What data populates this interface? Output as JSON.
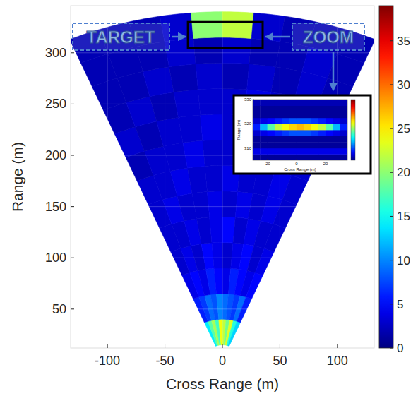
{
  "chart_data": [
    {
      "type": "heatmap",
      "xlabel": "Cross Range (m)",
      "ylabel": "Range (m)",
      "xlim": [
        -132,
        132
      ],
      "ylim": [
        12,
        346
      ],
      "xticks": [
        -100,
        -50,
        0,
        50,
        100
      ],
      "yticks": [
        50,
        100,
        150,
        200,
        250,
        300
      ],
      "grid": true,
      "angles": [
        -23,
        -18.4,
        -13.8,
        -9.2,
        -4.6,
        0,
        4.6,
        9.2,
        13.8,
        18.4,
        23
      ],
      "ranges": [
        15,
        40,
        65,
        90,
        115,
        140,
        165,
        190,
        215,
        240,
        265,
        290,
        315,
        340
      ],
      "cells": [
        [
          14,
          18,
          21,
          17,
          24,
          22,
          19,
          23,
          16,
          13
        ],
        [
          6,
          7,
          9,
          8,
          10,
          9,
          8,
          7,
          9,
          6
        ],
        [
          4,
          5,
          4,
          6,
          5,
          4,
          6,
          5,
          4,
          5
        ],
        [
          3,
          4,
          3,
          5,
          4,
          3,
          4,
          5,
          3,
          4
        ],
        [
          3,
          3,
          4,
          3,
          4,
          5,
          3,
          4,
          3,
          3
        ],
        [
          3,
          4,
          3,
          3,
          4,
          3,
          4,
          3,
          4,
          3
        ],
        [
          3,
          3,
          4,
          3,
          3,
          4,
          3,
          3,
          4,
          3
        ],
        [
          2,
          3,
          3,
          4,
          3,
          3,
          3,
          4,
          3,
          3
        ],
        [
          3,
          2,
          3,
          3,
          4,
          3,
          3,
          3,
          2,
          3
        ],
        [
          2,
          3,
          2,
          3,
          3,
          3,
          4,
          3,
          3,
          2
        ],
        [
          2,
          2,
          3,
          2,
          3,
          2,
          3,
          2,
          3,
          2
        ],
        [
          2,
          2,
          2,
          3,
          2,
          3,
          2,
          2,
          3,
          2
        ],
        [
          2,
          2,
          2,
          3,
          20,
          22,
          3,
          2,
          2,
          2
        ]
      ],
      "clim": [
        0,
        39
      ],
      "cticks": [
        0,
        5,
        10,
        15,
        20,
        25,
        30,
        35
      ],
      "annotations": [
        {
          "text": "TARGET"
        },
        {
          "text": "ZOOM"
        }
      ]
    },
    {
      "type": "heatmap",
      "xlabel": "Cross Range (m)",
      "ylabel": "Range (m)",
      "xlim": [
        -30,
        35
      ],
      "ylim": [
        305,
        330
      ],
      "xticks": [
        -20,
        0,
        20
      ],
      "yticks": [
        310,
        320,
        330
      ],
      "x": [
        -30,
        -25,
        -20,
        -15,
        -10,
        -5,
        0,
        5,
        10,
        15,
        20,
        25,
        30,
        35
      ],
      "y": [
        305,
        307.5,
        310,
        312.5,
        315,
        317.5,
        320,
        322.5,
        325,
        327.5,
        330
      ],
      "cells": [
        [
          1,
          1,
          1,
          1,
          1,
          1,
          1,
          1,
          1,
          1,
          1,
          1,
          1
        ],
        [
          4,
          4,
          4,
          4,
          4,
          4,
          4,
          4,
          4,
          4,
          4,
          4,
          4
        ],
        [
          1,
          1,
          1,
          1,
          1,
          1,
          1,
          1,
          1,
          1,
          1,
          1,
          1
        ],
        [
          1,
          1,
          1,
          1,
          1,
          1,
          1,
          1,
          1,
          1,
          1,
          1,
          1
        ],
        [
          3,
          4,
          5,
          6,
          7,
          8,
          8,
          8,
          7,
          6,
          5,
          4,
          3
        ],
        [
          6,
          12,
          18,
          22,
          24,
          26,
          27,
          26,
          24,
          22,
          18,
          12,
          6
        ],
        [
          3,
          4,
          5,
          6,
          7,
          8,
          8,
          8,
          7,
          6,
          5,
          4,
          3
        ],
        [
          1,
          1,
          1,
          1,
          1,
          1,
          1,
          1,
          1,
          1,
          1,
          1,
          1
        ],
        [
          1,
          1,
          1,
          1,
          1,
          1,
          1,
          1,
          1,
          1,
          1,
          1,
          1
        ],
        [
          2,
          2,
          2,
          2,
          2,
          2,
          2,
          2,
          2,
          2,
          2,
          2,
          2
        ]
      ],
      "clim": [
        0,
        39
      ]
    }
  ]
}
